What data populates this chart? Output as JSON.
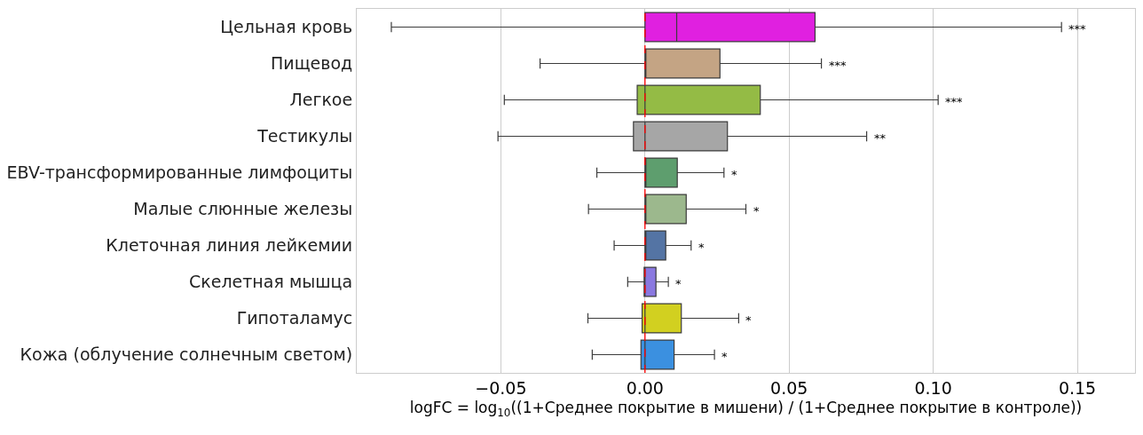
{
  "chart_data": {
    "type": "box",
    "orientation": "horizontal",
    "categories": [
      "Цельная кровь",
      "Пищевод",
      "Легкое",
      "Тестикулы",
      "EBV-трансформированные лимфоциты",
      "Малые слюнные железы",
      "Клеточная линия лейкемии",
      "Скелетная мышца",
      "Гипоталамус",
      "Кожа (облучение солнечным светом)"
    ],
    "colors": [
      "#e020e0",
      "#c4a484",
      "#94bb45",
      "#a6a6a6",
      "#5e9e6e",
      "#9cb88d",
      "#5474a4",
      "#8a78e0",
      "#d2d020",
      "#3b90e0"
    ],
    "boxes": [
      {
        "low": -0.088,
        "q1": 0,
        "median": 0.011,
        "q3": 0.059,
        "high": 0.1445
      },
      {
        "low": -0.0364,
        "q1": 0,
        "median": 0,
        "q3": 0.026,
        "high": 0.0612
      },
      {
        "low": -0.0488,
        "q1": -0.0027,
        "median": 0,
        "q3": 0.04,
        "high": 0.1017
      },
      {
        "low": -0.051,
        "q1": -0.004,
        "median": 0,
        "q3": 0.0286,
        "high": 0.0769
      },
      {
        "low": -0.0167,
        "q1": 0,
        "median": 0,
        "q3": 0.0112,
        "high": 0.0274
      },
      {
        "low": -0.0196,
        "q1": 0,
        "median": 0,
        "q3": 0.0143,
        "high": 0.035
      },
      {
        "low": -0.0107,
        "q1": 0,
        "median": 0,
        "q3": 0.0072,
        "high": 0.016
      },
      {
        "low": -0.006,
        "q1": -0.0003,
        "median": 0,
        "q3": 0.0038,
        "high": 0.0081
      },
      {
        "low": -0.0198,
        "q1": -0.001,
        "median": 0,
        "q3": 0.0126,
        "high": 0.0325
      },
      {
        "low": -0.0183,
        "q1": -0.0014,
        "median": 0,
        "q3": 0.0101,
        "high": 0.0241
      }
    ],
    "xlabel": "logFC = log$_{10}$((1+Среднее покрытие в мишени) / (1+Среднее покрытие в контроле))",
    "xlim": [
      -0.1,
      0.17
    ],
    "xticks": [
      {
        "value": -0.05,
        "label": "−0.05"
      },
      {
        "value": 0,
        "label": "0.00"
      },
      {
        "value": 0.05,
        "label": "0.05"
      },
      {
        "value": 0.1,
        "label": "0.10"
      },
      {
        "value": 0.15,
        "label": "0.15"
      }
    ],
    "grid": "x",
    "ref_lines": [
      {
        "axis": "x",
        "value": 0,
        "color": "#ff0000",
        "line_style": "dashed"
      }
    ],
    "annotations": [
      {
        "text": "***",
        "x": 0.1445,
        "y": "Цельная кровь"
      },
      {
        "text": "***",
        "x": 0.0612,
        "y": "Пищевод"
      },
      {
        "text": "***",
        "x": 0.1017,
        "y": "Легкое"
      },
      {
        "text": "**",
        "x": 0.0769,
        "y": "Тестикулы"
      },
      {
        "text": "*",
        "x": 0.0274,
        "y": "EBV-трансформированные лимфоциты"
      },
      {
        "text": "*",
        "x": 0.035,
        "y": "Малые слюнные железы"
      },
      {
        "text": "*",
        "x": 0.016,
        "y": "Клеточная линия лейкемии"
      },
      {
        "text": "*",
        "x": 0.0081,
        "y": "Скелетная мышца"
      },
      {
        "text": "*",
        "x": 0.0325,
        "y": "Гипоталамус"
      },
      {
        "text": "*",
        "x": 0.0241,
        "y": "Кожа (облучение солнечным светом)"
      }
    ]
  }
}
